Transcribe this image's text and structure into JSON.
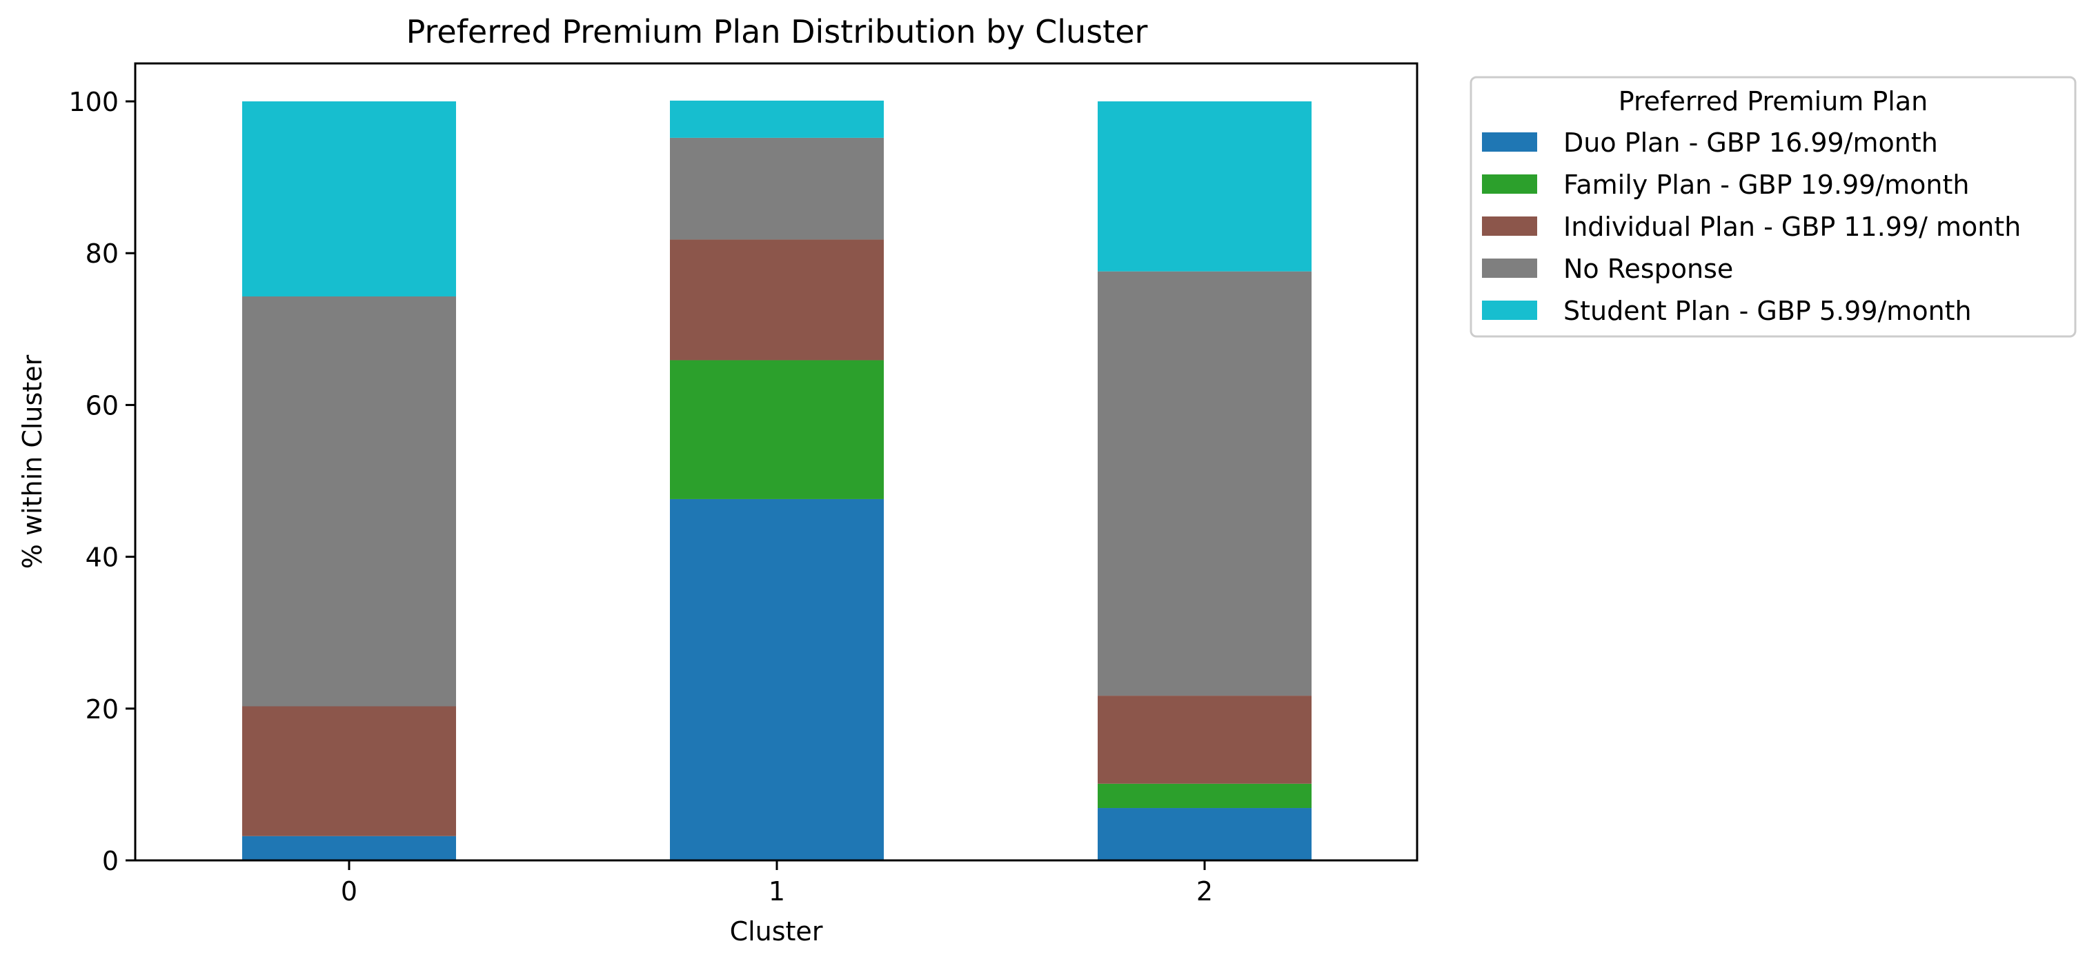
{
  "chart_data": {
    "type": "bar",
    "stacked": true,
    "title": "Preferred Premium Plan Distribution by Cluster",
    "xlabel": "Cluster",
    "ylabel": "% within Cluster",
    "categories": [
      "0",
      "1",
      "2"
    ],
    "ylim": [
      0,
      105
    ],
    "yticks": [
      0,
      20,
      40,
      60,
      80,
      100
    ],
    "grid": false,
    "legend": {
      "title": "Preferred Premium Plan",
      "placement": "outside upper right"
    },
    "series": [
      {
        "name": "Duo Plan - GBP 16.99/month",
        "color": "#1f77b4",
        "values": [
          3.2,
          47.6,
          6.9
        ]
      },
      {
        "name": "Family Plan - GBP 19.99/month",
        "color": "#2ca02c",
        "values": [
          0.0,
          18.3,
          3.2
        ]
      },
      {
        "name": "Individual Plan - GBP 11.99/ month",
        "color": "#8c564b",
        "values": [
          17.1,
          15.9,
          11.6
        ]
      },
      {
        "name": "No Response",
        "color": "#7f7f7f",
        "values": [
          54.0,
          13.4,
          55.9
        ]
      },
      {
        "name": "Student Plan - GBP 5.99/month",
        "color": "#17becf",
        "values": [
          25.7,
          4.9,
          22.4
        ]
      }
    ]
  }
}
